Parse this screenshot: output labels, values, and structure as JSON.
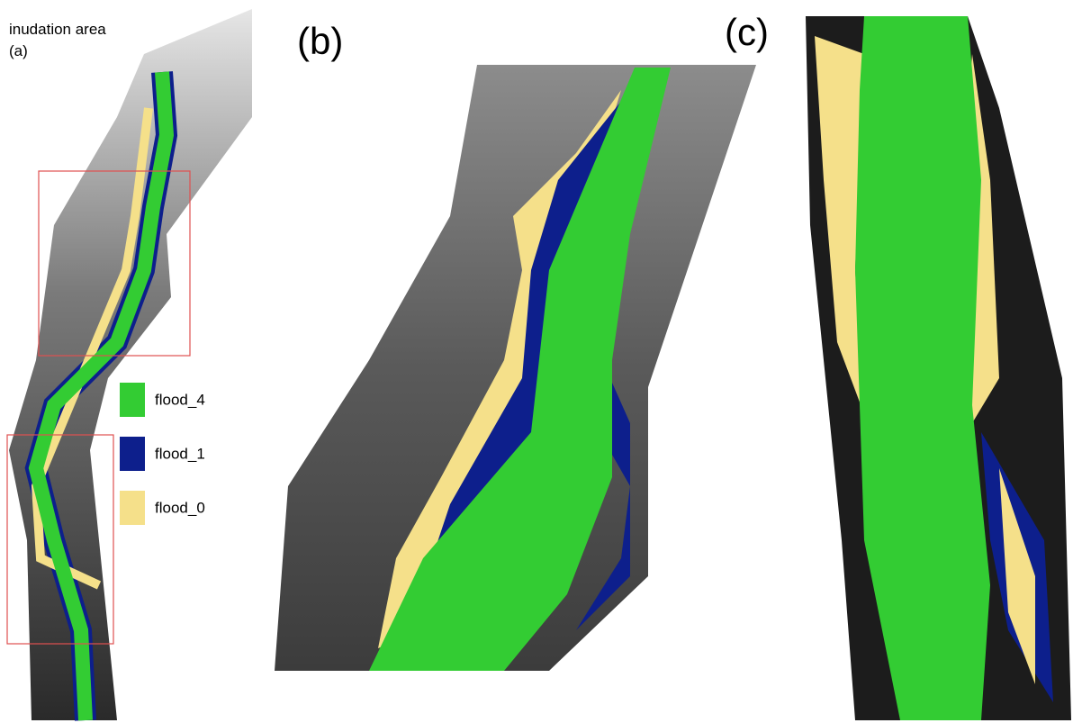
{
  "annotations": {
    "title": "inudation area",
    "panel_a": "(a)",
    "panel_b": "(b)",
    "panel_c": "(c)"
  },
  "legend": [
    {
      "label": "flood_4",
      "color": "#33cc33"
    },
    {
      "label": "flood_1",
      "color": "#0d1f8c"
    },
    {
      "label": "flood_0",
      "color": "#f5e08a"
    }
  ]
}
